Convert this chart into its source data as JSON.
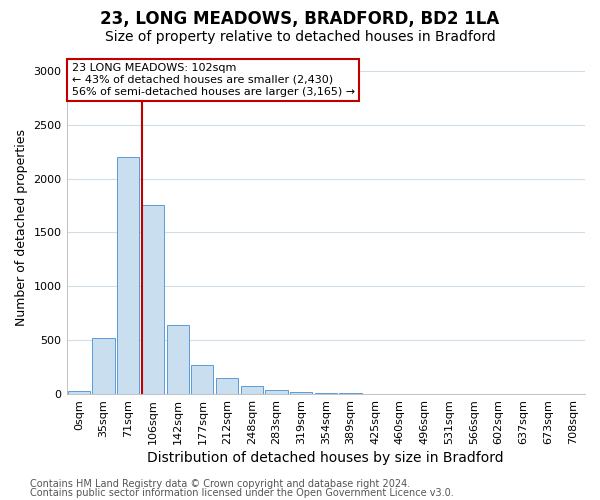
{
  "title": "23, LONG MEADOWS, BRADFORD, BD2 1LA",
  "subtitle": "Size of property relative to detached houses in Bradford",
  "xlabel": "Distribution of detached houses by size in Bradford",
  "ylabel": "Number of detached properties",
  "categories": [
    "0sqm",
    "35sqm",
    "71sqm",
    "106sqm",
    "142sqm",
    "177sqm",
    "212sqm",
    "248sqm",
    "283sqm",
    "319sqm",
    "354sqm",
    "389sqm",
    "425sqm",
    "460sqm",
    "496sqm",
    "531sqm",
    "566sqm",
    "602sqm",
    "637sqm",
    "673sqm",
    "708sqm"
  ],
  "values": [
    30,
    520,
    2200,
    1750,
    640,
    270,
    145,
    75,
    35,
    20,
    10,
    8,
    5,
    3,
    3,
    1,
    1,
    1,
    0,
    0,
    0
  ],
  "bar_color": "#c9dff0",
  "bar_edge_color": "#5b9bd5",
  "marker_line_color": "#c00000",
  "annotation_text": "23 LONG MEADOWS: 102sqm\n← 43% of detached houses are smaller (2,430)\n56% of semi-detached houses are larger (3,165) →",
  "annotation_box_color": "#ffffff",
  "annotation_box_edge": "#c00000",
  "ylim": [
    0,
    3100
  ],
  "yticks": [
    0,
    500,
    1000,
    1500,
    2000,
    2500,
    3000
  ],
  "footer1": "Contains HM Land Registry data © Crown copyright and database right 2024.",
  "footer2": "Contains public sector information licensed under the Open Government Licence v3.0.",
  "bg_color": "#ffffff",
  "plot_bg_color": "#ffffff",
  "grid_color": "#d0dce8",
  "title_fontsize": 12,
  "subtitle_fontsize": 10,
  "xlabel_fontsize": 10,
  "ylabel_fontsize": 9,
  "tick_fontsize": 8,
  "footer_fontsize": 7
}
